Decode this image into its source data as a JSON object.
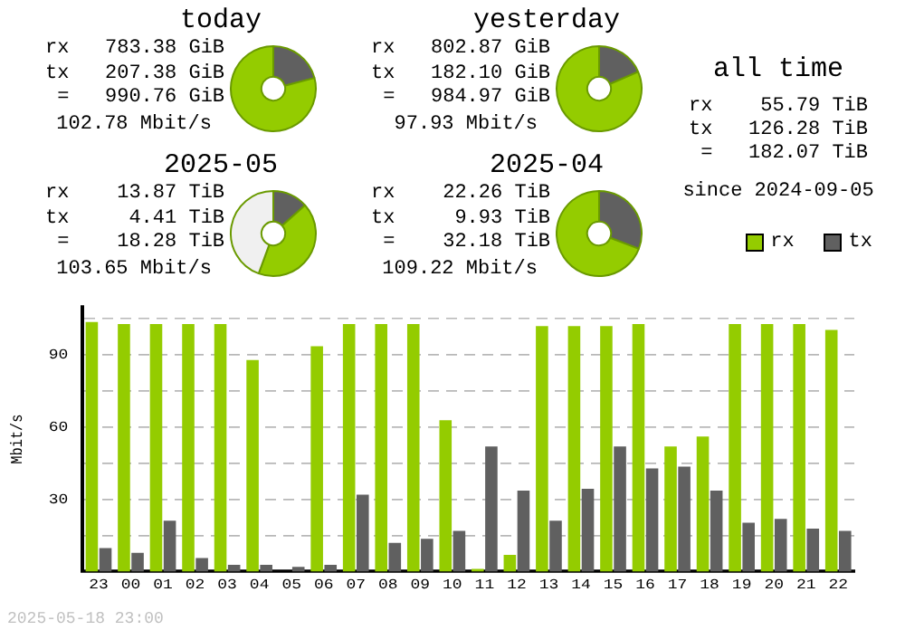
{
  "chart_data": [
    {
      "type": "donut",
      "title": "today",
      "categories": [
        null,
        null
      ],
      "values": [
        20.93,
        79.07
      ],
      "colors": [
        "#606060",
        "#94cc00"
      ],
      "annotations": [
        "rx   783.38 GiB",
        "tx   207.38 GiB",
        " =   990.76 GiB",
        "102.78 Mbit/s"
      ]
    },
    {
      "type": "donut",
      "title": "yesterday",
      "categories": [
        null,
        null
      ],
      "values": [
        18.49,
        81.51
      ],
      "colors": [
        "#606060",
        "#94cc00"
      ],
      "annotations": [
        "rx   802.87 GiB",
        "tx   182.10 GiB",
        " =   984.97 GiB",
        "97.93 Mbit/s"
      ]
    },
    {
      "type": "other",
      "title": "all time",
      "annotations": [
        "rx    55.79 TiB",
        "tx   126.28 TiB",
        " =   182.07 TiB",
        "since 2024-09-05"
      ]
    },
    {
      "type": "donut",
      "title": "2025-05",
      "categories": [
        null,
        null,
        null
      ],
      "values": [
        13.41,
        42.18,
        44.41
      ],
      "colors": [
        "#606060",
        "#94cc00",
        "#f0f0f0"
      ],
      "annotations": [
        "rx    13.87 TiB",
        "tx     4.41 TiB",
        " =    18.28 TiB",
        "103.65 Mbit/s"
      ]
    },
    {
      "type": "donut",
      "title": "2025-04",
      "categories": [
        null,
        null
      ],
      "values": [
        30.85,
        69.15
      ],
      "colors": [
        "#606060",
        "#94cc00"
      ],
      "annotations": [
        "rx    22.26 TiB",
        "tx     9.93 TiB",
        " =    32.18 TiB",
        "109.22 Mbit/s"
      ]
    },
    {
      "type": "bar",
      "categories": [
        "23",
        "00",
        "01",
        "02",
        "03",
        "04",
        "05",
        "06",
        "07",
        "08",
        "09",
        "10",
        "11",
        "12",
        "13",
        "14",
        "15",
        "16",
        "17",
        "18",
        "19",
        "20",
        "21",
        "22"
      ],
      "series": [
        {
          "name": "rx",
          "color": "#94cc00",
          "values": [
            103.6,
            102.8,
            102.8,
            102.8,
            102.8,
            87.8,
            0,
            93.6,
            102.8,
            102.8,
            102.8,
            62.8,
            1.1,
            6.9,
            101.9,
            101.9,
            101.9,
            102.8,
            51.9,
            56.1,
            102.8,
            102.8,
            102.8,
            100.3
          ]
        },
        {
          "name": "tx",
          "color": "#606060",
          "values": [
            9.7,
            7.8,
            21.1,
            5.6,
            2.8,
            2.8,
            1.9,
            2.8,
            31.9,
            11.9,
            13.6,
            16.9,
            51.9,
            33.6,
            21.1,
            34.4,
            51.9,
            42.8,
            43.6,
            33.6,
            20.3,
            21.9,
            17.8,
            16.9
          ]
        }
      ],
      "ylabel": "Mbit/s",
      "ylim": [
        0,
        110
      ],
      "yticks": [
        {
          "value": 15,
          "label": null
        },
        30,
        {
          "value": 45,
          "label": null
        },
        60,
        {
          "value": 75,
          "label": null
        },
        90,
        {
          "value": 105,
          "label": null
        }
      ],
      "grid": "y",
      "legend": "top right",
      "annotations": [
        "2025-05-18 23:00"
      ]
    }
  ]
}
